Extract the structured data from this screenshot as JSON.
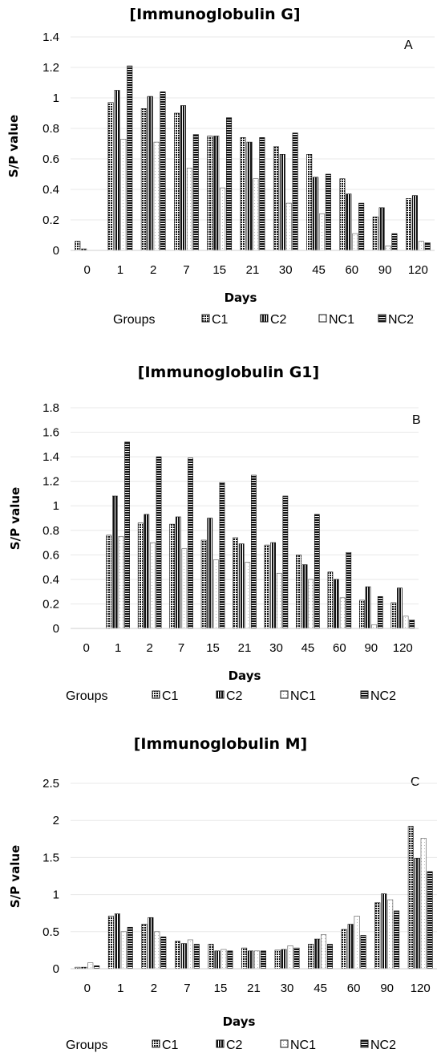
{
  "legend_title": "Groups",
  "series_names": [
    "C1",
    "C2",
    "NC1",
    "NC2"
  ],
  "chart_data": [
    {
      "type": "bar",
      "title": "[Immunoglobulin G]",
      "panel_label": "A",
      "xlabel": "Days",
      "ylabel": "S/P value",
      "ylim": [
        0,
        1.4
      ],
      "yticks": [
        "0",
        "0.2",
        "0.4",
        "0.6",
        "0.8",
        "1",
        "1.2",
        "1.4"
      ],
      "categories": [
        "0",
        "1",
        "2",
        "7",
        "15",
        "21",
        "30",
        "45",
        "60",
        "90",
        "120"
      ],
      "legend_position": "bottom",
      "series": [
        {
          "name": "C1",
          "values": [
            0.06,
            0.97,
            0.93,
            0.9,
            0.75,
            0.74,
            0.68,
            0.63,
            0.47,
            0.22,
            0.34
          ]
        },
        {
          "name": "C2",
          "values": [
            0.01,
            1.05,
            1.01,
            0.95,
            0.75,
            0.71,
            0.63,
            0.48,
            0.37,
            0.28,
            0.36
          ]
        },
        {
          "name": "NC1",
          "values": [
            0.0,
            0.73,
            0.71,
            0.54,
            0.41,
            0.47,
            0.31,
            0.24,
            0.11,
            0.03,
            0.06
          ]
        },
        {
          "name": "NC2",
          "values": [
            0.0,
            1.21,
            1.04,
            0.76,
            0.87,
            0.74,
            0.77,
            0.5,
            0.31,
            0.11,
            0.05
          ]
        }
      ]
    },
    {
      "type": "bar",
      "title": "[Immunoglobulin G1]",
      "panel_label": "B",
      "xlabel": "Days",
      "ylabel": "S/P value",
      "ylim": [
        0,
        1.8
      ],
      "yticks": [
        "0",
        "0.2",
        "0.4",
        "0.6",
        "0.8",
        "1",
        "1.2",
        "1.4",
        "1.6",
        "1.8"
      ],
      "categories": [
        "0",
        "1",
        "2",
        "7",
        "15",
        "21",
        "30",
        "45",
        "60",
        "90",
        "120"
      ],
      "legend_position": "bottom",
      "series": [
        {
          "name": "C1",
          "values": [
            0.0,
            0.76,
            0.86,
            0.85,
            0.72,
            0.74,
            0.68,
            0.6,
            0.46,
            0.23,
            0.21
          ]
        },
        {
          "name": "C2",
          "values": [
            0.0,
            1.08,
            0.93,
            0.91,
            0.9,
            0.69,
            0.7,
            0.52,
            0.4,
            0.34,
            0.33
          ]
        },
        {
          "name": "NC1",
          "values": [
            0.0,
            0.75,
            0.7,
            0.65,
            0.56,
            0.54,
            0.45,
            0.4,
            0.25,
            0.03,
            0.1
          ]
        },
        {
          "name": "NC2",
          "values": [
            0.0,
            1.52,
            1.4,
            1.39,
            1.19,
            1.25,
            1.08,
            0.93,
            0.62,
            0.26,
            0.07
          ]
        }
      ]
    },
    {
      "type": "bar",
      "title": "[Immunoglobulin M]",
      "panel_label": "C",
      "xlabel": "Days",
      "ylabel": "S/P value",
      "ylim": [
        0,
        2.5
      ],
      "yticks": [
        "0",
        "0.5",
        "1",
        "1.5",
        "2",
        "2.5"
      ],
      "categories": [
        "0",
        "1",
        "2",
        "7",
        "15",
        "21",
        "30",
        "45",
        "60",
        "90",
        "120"
      ],
      "legend_position": "bottom",
      "series": [
        {
          "name": "C1",
          "values": [
            0.02,
            0.71,
            0.6,
            0.37,
            0.33,
            0.28,
            0.25,
            0.33,
            0.53,
            0.89,
            1.92
          ]
        },
        {
          "name": "C2",
          "values": [
            0.02,
            0.74,
            0.69,
            0.34,
            0.24,
            0.24,
            0.26,
            0.4,
            0.6,
            1.01,
            1.49
          ]
        },
        {
          "name": "NC1",
          "values": [
            0.08,
            0.5,
            0.5,
            0.39,
            0.26,
            0.24,
            0.31,
            0.46,
            0.71,
            0.93,
            1.76
          ]
        },
        {
          "name": "NC2",
          "values": [
            0.04,
            0.56,
            0.43,
            0.33,
            0.24,
            0.24,
            0.28,
            0.33,
            0.45,
            0.78,
            1.31
          ]
        }
      ]
    }
  ]
}
